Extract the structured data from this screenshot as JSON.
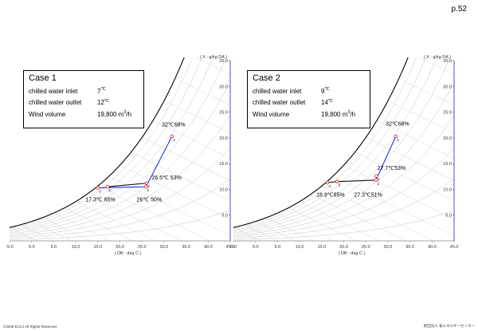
{
  "page": {
    "number": "p.52",
    "copyright": "©2008 ECCJ All Rights Reserved",
    "org": "財団法人 省エネルギーセンター"
  },
  "cases": [
    {
      "title": "Case 1",
      "rows": [
        {
          "label": "chilled water inlet",
          "value": "7",
          "unit": "℃"
        },
        {
          "label": "chilled water outlet",
          "value": "12",
          "unit": "℃"
        },
        {
          "label": "Wind volume",
          "value": "19,800 m",
          "unit": "3",
          "suffix": "/h"
        }
      ]
    },
    {
      "title": "Case 2",
      "rows": [
        {
          "label": "chilled water inlet",
          "value": "9",
          "unit": "℃"
        },
        {
          "label": "chilled water outlet",
          "value": "14",
          "unit": "℃"
        },
        {
          "label": "Wind volume",
          "value": "19,800 m",
          "unit": "3",
          "suffix": "/h"
        }
      ]
    }
  ],
  "chart_data": [
    {
      "type": "line",
      "xlabel": "( DB : deg C )",
      "ylabel": "( X : g/kg DA )",
      "xlim": [
        -5,
        45
      ],
      "ylim": [
        0,
        35
      ],
      "x_ticks": [
        "-5.0",
        "0.0",
        "5.0",
        "10.0",
        "15.0",
        "20.0",
        "25.0",
        "30.0",
        "35.0",
        "40.0",
        "45.0"
      ],
      "y_ticks": [
        "5.0",
        "10.0",
        "15.0",
        "20.0",
        "25.0",
        "30.0",
        "35.0"
      ],
      "points": [
        {
          "id": "1",
          "db": 31.8,
          "x": 20.3
        },
        {
          "id": "2",
          "db": 25.9,
          "x": 10.5
        },
        {
          "id": "3",
          "db": 15.0,
          "x": 10.3
        },
        {
          "id": "4",
          "db": 26.0,
          "x": 11.2
        },
        {
          "id": "5",
          "db": 17.2,
          "x": 10.5
        }
      ],
      "path_blue": [
        "1",
        "2",
        "3"
      ],
      "path_black": [
        "5",
        "4",
        "2"
      ],
      "annotations": [
        {
          "text": "32℃68%",
          "db": 29.5,
          "x": 22.2
        },
        {
          "text": "26.5℃ 53%",
          "db": 27.2,
          "x": 11.9
        },
        {
          "text": "17.3℃ 85%",
          "db": 12.2,
          "x": 7.7
        },
        {
          "text": "26℃ 50%",
          "db": 23.8,
          "x": 7.7
        }
      ]
    },
    {
      "type": "line",
      "xlabel": "( DB : deg C )",
      "ylabel": "( X : g/kg DA )",
      "xlim": [
        -5,
        45
      ],
      "ylim": [
        0,
        35
      ],
      "x_ticks": [
        "5.0",
        "0.0",
        "5.0",
        "10.0",
        "15.0",
        "20.0",
        "25.0",
        "30.0",
        "35.0",
        "40.0",
        "45.0"
      ],
      "y_ticks": [
        "5.0",
        "10.0",
        "15.0",
        "20.0",
        "25.0",
        "30.0",
        "35.0"
      ],
      "points": [
        {
          "id": "1",
          "db": 31.8,
          "x": 20.3
        },
        {
          "id": "2",
          "db": 27.3,
          "x": 11.8
        },
        {
          "id": "3",
          "db": 27.4,
          "x": 12.6
        },
        {
          "id": "4",
          "db": 16.3,
          "x": 11.3
        },
        {
          "id": "5",
          "db": 18.5,
          "x": 11.5
        }
      ],
      "path_blue": [
        "1",
        "2",
        "3"
      ],
      "path_black": [
        "4",
        "5",
        "2"
      ],
      "annotations": [
        {
          "text": "32℃68%",
          "db": 29.5,
          "x": 22.4
        },
        {
          "text": "27.7℃53%",
          "db": 27.6,
          "x": 13.8
        },
        {
          "text": "18.9℃85%",
          "db": 13.8,
          "x": 8.6
        },
        {
          "text": "27.3℃51%",
          "db": 22.3,
          "x": 8.6
        }
      ]
    }
  ]
}
